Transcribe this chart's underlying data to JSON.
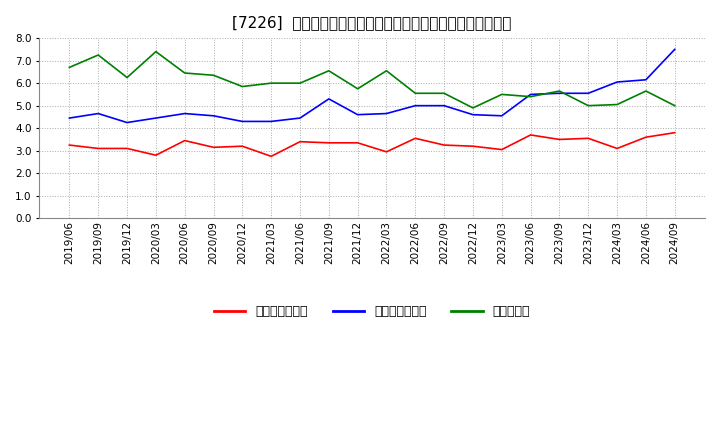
{
  "title": "[7226]  売上債権回転率、買入債務回転率、在庫回転率の推移",
  "dates": [
    "2019/06",
    "2019/09",
    "2019/12",
    "2020/03",
    "2020/06",
    "2020/09",
    "2020/12",
    "2021/03",
    "2021/06",
    "2021/09",
    "2021/12",
    "2022/03",
    "2022/06",
    "2022/09",
    "2022/12",
    "2023/03",
    "2023/06",
    "2023/09",
    "2023/12",
    "2024/03",
    "2024/06",
    "2024/09"
  ],
  "receivables_turnover": [
    3.25,
    3.1,
    3.1,
    2.8,
    3.45,
    3.15,
    3.2,
    2.75,
    3.4,
    3.35,
    3.35,
    2.95,
    3.55,
    3.25,
    3.2,
    3.05,
    3.7,
    3.5,
    3.55,
    3.1,
    3.6,
    3.8
  ],
  "payables_turnover": [
    4.45,
    4.65,
    4.25,
    4.45,
    4.65,
    4.55,
    4.3,
    4.3,
    4.45,
    5.3,
    4.6,
    4.65,
    5.0,
    5.0,
    4.6,
    4.55,
    5.5,
    5.55,
    5.55,
    6.05,
    6.15,
    7.5
  ],
  "inventory_turnover": [
    6.7,
    7.25,
    6.25,
    7.4,
    6.45,
    6.35,
    5.85,
    6.0,
    6.0,
    6.55,
    5.75,
    6.55,
    5.55,
    5.55,
    4.9,
    5.5,
    5.4,
    5.65,
    5.0,
    5.05,
    5.65,
    5.0
  ],
  "receivables_color": "#ff0000",
  "payables_color": "#0000ff",
  "inventory_color": "#008000",
  "ylim": [
    0.0,
    8.0
  ],
  "yticks": [
    0.0,
    1.0,
    2.0,
    3.0,
    4.0,
    5.0,
    6.0,
    7.0,
    8.0
  ],
  "legend_labels": [
    "売上債権回転率",
    "買入債務回転率",
    "在庫回転率"
  ],
  "bg_color": "#ffffff",
  "grid_color": "#aaaaaa",
  "title_fontsize": 11,
  "tick_fontsize": 7.5,
  "legend_fontsize": 9
}
